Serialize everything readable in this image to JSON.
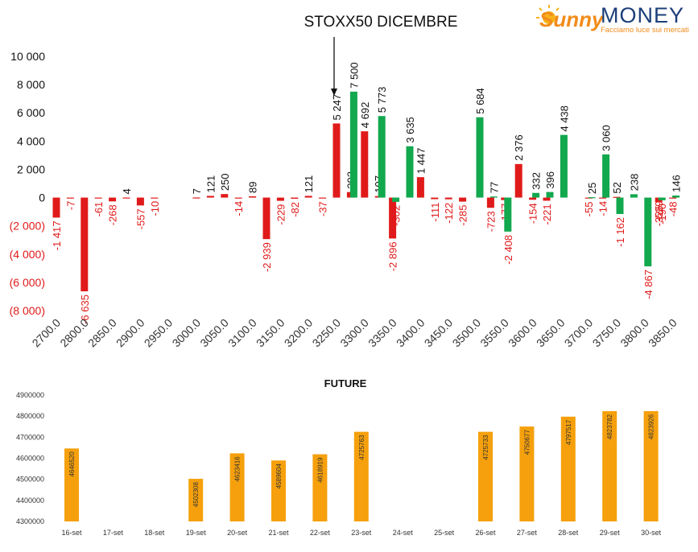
{
  "logo": {
    "word1": "Sunny",
    "word2": "MONEY",
    "tagline": "Facciamo luce sui mercati"
  },
  "colors": {
    "positive": "#12a84e",
    "negative": "#e01a1a",
    "future_bar": "#f5a00c",
    "logo_orange": "#f28c1a",
    "logo_blue": "#1d3f7a"
  },
  "chart_data": [
    {
      "type": "bar",
      "title": "STOXX50 DICEMBRE",
      "categories": [
        "2700.0",
        "2750.0",
        "2800.0",
        "2825.0",
        "2850.0",
        "2875.0",
        "2900.0",
        "2925.0",
        "2950.0",
        "2975.0",
        "3000.0",
        "3025.0",
        "3050.0",
        "3075.0",
        "3100.0",
        "3125.0",
        "3150.0",
        "3175.0",
        "3200.0",
        "3225.0",
        "3250.0",
        "3275.0",
        "3300.0",
        "3325.0",
        "3350.0",
        "3375.0",
        "3400.0",
        "3425.0",
        "3450.0",
        "3475.0",
        "3500.0",
        "3525.0",
        "3550.0",
        "3575.0",
        "3600.0",
        "3625.0",
        "3650.0",
        "3675.0",
        "3700.0",
        "3725.0",
        "3750.0",
        "3775.0",
        "3800.0",
        "3825.0",
        "3850.0"
      ],
      "xtick_labels": [
        "2700.0",
        "2800.0",
        "2850.0",
        "2900.0",
        "2950.0",
        "3000.0",
        "3050.0",
        "3100.0",
        "3150.0",
        "3200.0",
        "3250.0",
        "3300.0",
        "3350.0",
        "3400.0",
        "3450.0",
        "3500.0",
        "3550.0",
        "3600.0",
        "3650.0",
        "3700.0",
        "3750.0",
        "3800.0",
        "3850.0"
      ],
      "series": [
        {
          "color": "negative",
          "values": [
            -1417,
            -7,
            -6635,
            -61,
            -268,
            4,
            -557,
            -10,
            0,
            0,
            7,
            121,
            250,
            -14,
            89,
            -2939,
            -229,
            -82,
            121,
            -37,
            5247,
            392,
            4692,
            107,
            -2896,
            0,
            1447,
            -111,
            -122,
            -285,
            0,
            -723,
            -177,
            2376,
            -154,
            -221,
            0,
            0,
            -55,
            -14,
            52,
            0,
            0,
            -325,
            -48
          ],
          "labels": [
            "-1 417",
            "-7",
            "-6 635",
            "-61",
            "-268",
            "4",
            "-557",
            "-10",
            "",
            "",
            "7",
            "121",
            "250",
            "-14",
            "89",
            "-2 939",
            "-229",
            "-82",
            "121",
            "-37",
            "5 247",
            "392",
            "4 692",
            "107",
            "-2 896",
            "",
            "1 447",
            "-111",
            "-122",
            "-285",
            "",
            "-723",
            "-177",
            "2 376",
            "-154",
            "-221",
            "",
            "",
            "-55",
            "-14",
            "52",
            "",
            "",
            "-325",
            "-48"
          ]
        },
        {
          "color": "positive",
          "values": [
            0,
            0,
            0,
            0,
            0,
            0,
            0,
            0,
            0,
            0,
            0,
            0,
            0,
            0,
            0,
            0,
            0,
            0,
            0,
            0,
            0,
            7500,
            0,
            5773,
            -302,
            3635,
            0,
            0,
            0,
            0,
            5684,
            77,
            -2408,
            0,
            332,
            396,
            4438,
            0,
            25,
            3060,
            -1162,
            238,
            -4867,
            -190,
            146
          ],
          "labels": [
            "",
            "",
            "",
            "",
            "",
            "",
            "",
            "",
            "",
            "",
            "",
            "",
            "",
            "",
            "",
            "",
            "",
            "",
            "",
            "",
            "",
            "7 500",
            "",
            "5 773",
            "-302",
            "3 635",
            "",
            "",
            "",
            "",
            "5 684",
            "77",
            "-2 408",
            "",
            "332",
            "396",
            "4 438",
            "",
            "25",
            "3 060",
            "-1 162",
            "238",
            "-4 867",
            "-190",
            "146"
          ]
        }
      ],
      "extra_labels": [
        {
          "index": 42,
          "text": "-529",
          "color": "negative"
        }
      ],
      "yticks": [
        10000,
        8000,
        6000,
        4000,
        2000,
        0,
        -2000,
        -4000,
        -6000,
        -8000
      ],
      "ytick_labels": [
        "10 000",
        "8 000",
        "6 000",
        "4 000",
        "2 000",
        "0",
        "(2 000)",
        "(4 000)",
        "(6 000)",
        "(8 000)"
      ],
      "ylim": [
        -8000,
        10000
      ],
      "annotation": {
        "type": "arrow",
        "target_category": "3250.0"
      },
      "grid": false
    },
    {
      "type": "bar",
      "title": "FUTURE",
      "categories": [
        "16-set",
        "17-set",
        "18-set",
        "19-set",
        "20-set",
        "21-set",
        "22-set",
        "23-set",
        "24-set",
        "25-set",
        "26-set",
        "27-set",
        "28-set",
        "29-set",
        "30-set"
      ],
      "values": [
        4646520,
        null,
        null,
        4502308,
        4623416,
        4589604,
        4618919,
        4725763,
        null,
        null,
        4725733,
        4750677,
        4797517,
        4823782,
        4823926
      ],
      "labels": [
        "4646520",
        "",
        "",
        "4502308",
        "4623416",
        "4589604",
        "4618919",
        "4725763",
        "",
        "",
        "4725733",
        "4750677",
        "4797517",
        "4823782",
        "4823926"
      ],
      "yticks": [
        4900000,
        4800000,
        4700000,
        4600000,
        4500000,
        4400000,
        4300000
      ],
      "ytick_labels": [
        "4900000",
        "4800000",
        "4700000",
        "4600000",
        "4500000",
        "4400000",
        "4300000"
      ],
      "ylim": [
        4300000,
        4900000
      ],
      "grid": false
    }
  ]
}
